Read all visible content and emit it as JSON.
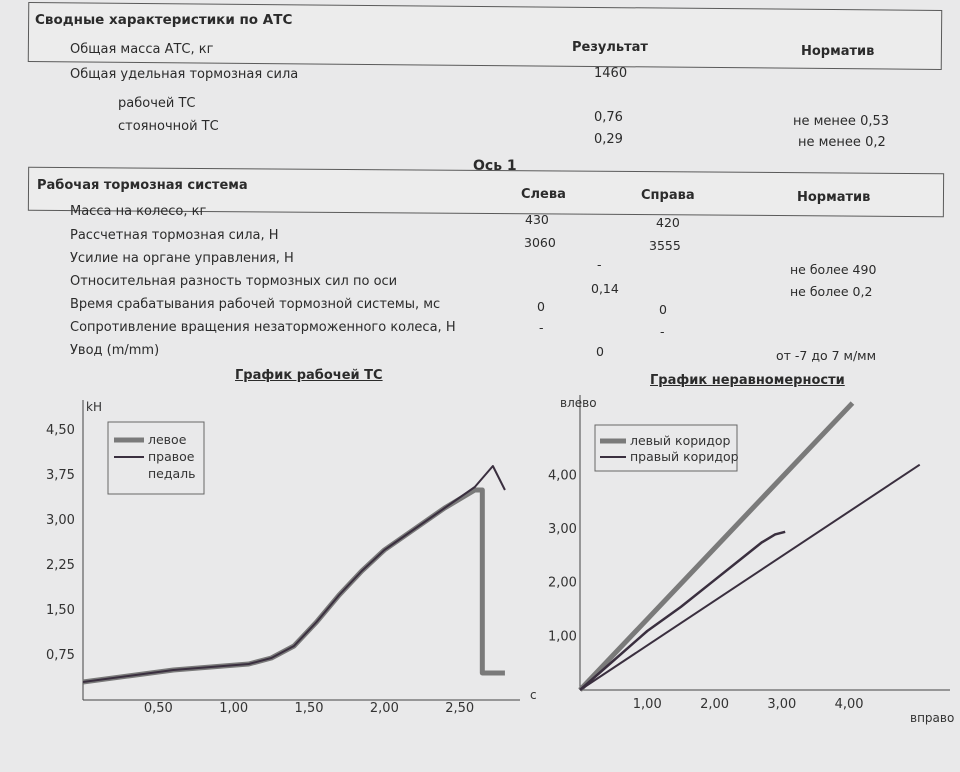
{
  "summary": {
    "title": "Сводные характеристики по АТС",
    "col_result": "Результат",
    "col_norm": "Норматив",
    "rows": [
      {
        "label": "Общая масса АТС, кг",
        "result": "1460",
        "norm": ""
      },
      {
        "label": "Общая удельная тормозная сила",
        "result": "",
        "norm": ""
      },
      {
        "label": "рабочей ТС",
        "result": "0,76",
        "norm": "не менее 0,53"
      },
      {
        "label": "стояночной ТС",
        "result": "0,29",
        "norm": "не менее 0,2"
      }
    ]
  },
  "axle": {
    "heading": "Ось 1",
    "title": "Рабочая тормозная система",
    "col_left": "Слева",
    "col_right": "Справа",
    "col_norm": "Норматив",
    "rows": [
      {
        "label": "Масса на колесо, кг",
        "left": "430",
        "center": "",
        "right": "420",
        "norm": ""
      },
      {
        "label": "Рассчетная тормозная сила, Н",
        "left": "3060",
        "center": "",
        "right": "3555",
        "norm": ""
      },
      {
        "label": "Усилие на органе управления, Н",
        "left": "",
        "center": "-",
        "right": "",
        "norm": "не более 490"
      },
      {
        "label": "Относительная разность тормозных сил по оси",
        "left": "",
        "center": "0,14",
        "right": "",
        "norm": "не более 0,2"
      },
      {
        "label": "Время срабатывания рабочей тормозной системы, мс",
        "left": "0",
        "center": "",
        "right": "0",
        "norm": ""
      },
      {
        "label": "Сопротивление вращения незаторможенного колеса, Н",
        "left": "-",
        "center": "",
        "right": "-",
        "norm": ""
      },
      {
        "label": "Увод (m/mm)",
        "left": "",
        "center": "0",
        "right": "",
        "norm": "от -7 до 7 м/мм"
      }
    ]
  },
  "chart_data": [
    {
      "type": "line",
      "title": "График рабочей ТС",
      "ylabel": "kH",
      "xlabel": "c",
      "x_ticks": [
        "0,50",
        "1,00",
        "1,50",
        "2,00",
        "2,50"
      ],
      "y_ticks": [
        "0,75",
        "1,50",
        "2,25",
        "3,00",
        "3,75",
        "4,50"
      ],
      "xlim": [
        0,
        2.9
      ],
      "ylim": [
        0,
        5.0
      ],
      "grid": false,
      "legend_position": "top-left",
      "legend": [
        "левое",
        "правое",
        "педаль"
      ],
      "colors": {
        "левое": "#7a7a7a",
        "правое": "#3a2f3f"
      },
      "series": [
        {
          "name": "левое",
          "x": [
            0.0,
            0.3,
            0.6,
            0.9,
            1.1,
            1.25,
            1.4,
            1.55,
            1.7,
            1.85,
            2.0,
            2.2,
            2.4,
            2.6,
            2.65,
            2.65,
            2.8
          ],
          "y": [
            0.3,
            0.4,
            0.5,
            0.56,
            0.6,
            0.7,
            0.9,
            1.3,
            1.75,
            2.15,
            2.5,
            2.85,
            3.2,
            3.5,
            3.5,
            0.45,
            0.45
          ]
        },
        {
          "name": "правое",
          "x": [
            0.0,
            0.3,
            0.6,
            0.9,
            1.1,
            1.25,
            1.4,
            1.55,
            1.7,
            1.85,
            2.0,
            2.2,
            2.4,
            2.6,
            2.72,
            2.8
          ],
          "y": [
            0.3,
            0.4,
            0.5,
            0.56,
            0.6,
            0.7,
            0.9,
            1.3,
            1.75,
            2.15,
            2.5,
            2.85,
            3.2,
            3.55,
            3.9,
            3.5
          ]
        }
      ]
    },
    {
      "type": "line",
      "title": "График неравномерности",
      "ylabel": "влево",
      "xlabel": "вправо",
      "x_ticks": [
        "1,00",
        "2,00",
        "3,00",
        "4,00"
      ],
      "y_ticks": [
        "1,00",
        "2,00",
        "3,00",
        "4,00"
      ],
      "xlim": [
        0,
        5.5
      ],
      "ylim": [
        0,
        5.5
      ],
      "grid": false,
      "legend_position": "top-left",
      "legend": [
        "левый коридор",
        "правый коридор"
      ],
      "colors": {
        "левый коридор": "#7a7a7a",
        "правый коридор": "#3a2f3f",
        "measured": "#3a2f3f"
      },
      "series": [
        {
          "name": "левый коридор",
          "x": [
            0,
            4.05
          ],
          "y": [
            0,
            5.35
          ]
        },
        {
          "name": "правый коридор",
          "x": [
            0,
            5.05
          ],
          "y": [
            0,
            4.2
          ]
        },
        {
          "name": "",
          "x": [
            0,
            0.5,
            1.0,
            1.5,
            2.0,
            2.4,
            2.7,
            2.9,
            3.05
          ],
          "y": [
            0,
            0.55,
            1.1,
            1.55,
            2.05,
            2.45,
            2.75,
            2.9,
            2.95
          ]
        }
      ]
    }
  ]
}
